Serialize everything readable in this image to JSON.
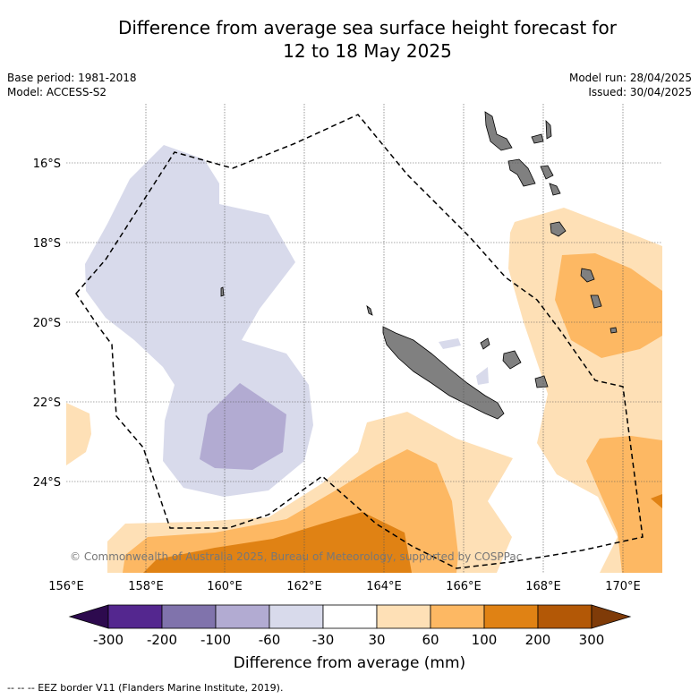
{
  "title": {
    "line1": "Difference from average sea surface height forecast for",
    "line2": "12 to 18 May 2025"
  },
  "meta_left": {
    "base_period": "Base period: 1981-2018",
    "model": "Model: ACCESS-S2"
  },
  "meta_right": {
    "model_run": "Model run: 28/04/2025",
    "issued": "Issued: 30/04/2025"
  },
  "map": {
    "lat_labels": [
      "16°S",
      "18°S",
      "20°S",
      "22°S",
      "24°S"
    ],
    "lon_labels": [
      "156°E",
      "158°E",
      "160°E",
      "162°E",
      "164°E",
      "166°E",
      "168°E",
      "170°E"
    ],
    "copyright": "© Commonwealth of Australia 2025, Bureau of Meteorology, supported by COSPPac"
  },
  "colorbar": {
    "colors": [
      "#2d0a4e",
      "#54278f",
      "#8073ac",
      "#b2abd2",
      "#d8daeb",
      "#ffffff",
      "#fee0b6",
      "#fdb863",
      "#e08214",
      "#b35806",
      "#7f3b08"
    ],
    "tick_labels": [
      "-300",
      "-200",
      "-100",
      "-60",
      "-30",
      "30",
      "60",
      "100",
      "200",
      "300"
    ],
    "label": "Difference from average (mm)"
  },
  "footnote": "--  --  -- EEZ border V11 (Flanders Marine Institute, 2019)."
}
